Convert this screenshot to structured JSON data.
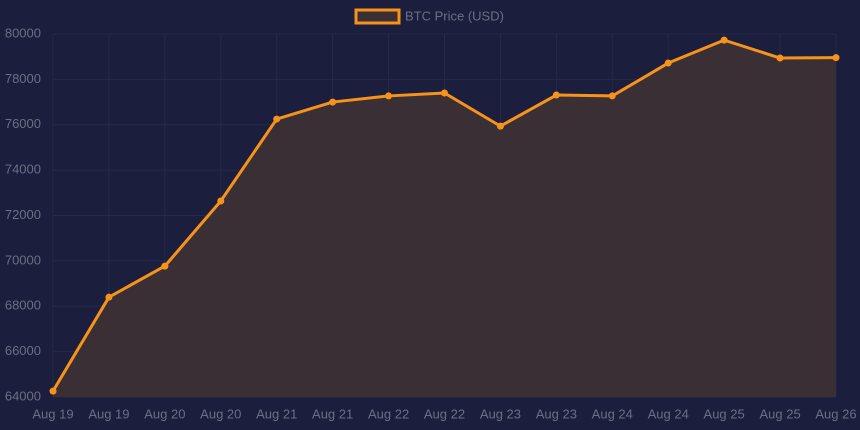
{
  "chart_data": {
    "type": "line",
    "legend": "top",
    "categories": [
      "Aug 19",
      "Aug 19",
      "Aug 20",
      "Aug 20",
      "Aug 21",
      "Aug 21",
      "Aug 22",
      "Aug 22",
      "Aug 23",
      "Aug 23",
      "Aug 24",
      "Aug 24",
      "Aug 25",
      "Aug 25",
      "Aug 26"
    ],
    "series": [
      {
        "name": "BTC Price (USD)",
        "color": "#f7931a",
        "fill": "#3b2f36",
        "values": [
          64260,
          68400,
          69770,
          72640,
          76250,
          77000,
          77270,
          77400,
          75940,
          77310,
          77270,
          78720,
          79730,
          78940,
          78960
        ]
      }
    ],
    "ylim": [
      64000,
      80000
    ],
    "yticks": [
      64000,
      66000,
      68000,
      70000,
      72000,
      74000,
      76000,
      78000,
      80000
    ],
    "grid": true
  }
}
